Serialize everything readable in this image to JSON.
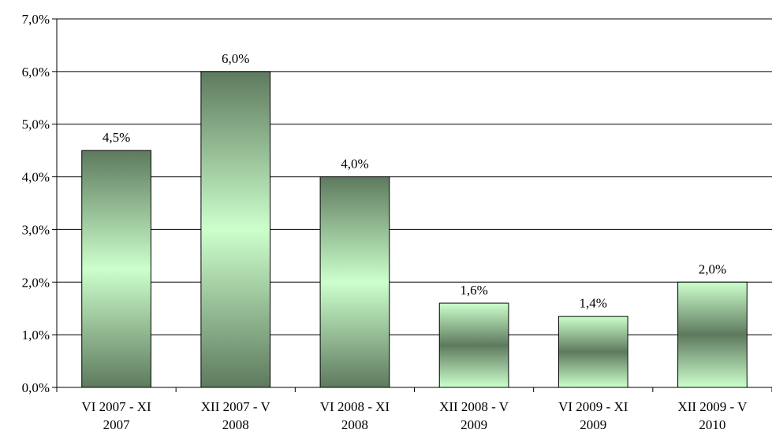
{
  "chart_data": {
    "type": "bar",
    "title": "",
    "xlabel": "",
    "ylabel": "",
    "categories": [
      [
        "VI 2007 - XI",
        "2007"
      ],
      [
        "XII 2007 - V",
        "2008"
      ],
      [
        "VI 2008 - XI",
        "2008"
      ],
      [
        "XII 2008 - V",
        "2009"
      ],
      [
        "VI 2009 - XI",
        "2009"
      ],
      [
        "XII 2009 - V",
        "2010"
      ]
    ],
    "values": [
      4.5,
      6.0,
      4.0,
      1.6,
      1.35,
      2.0
    ],
    "data_labels": [
      "4,5%",
      "6,0%",
      "4,0%",
      "1,6%",
      "1,4%",
      "2,0%"
    ],
    "ylim": [
      0,
      7
    ],
    "y_ticks": [
      0,
      1,
      2,
      3,
      4,
      5,
      6,
      7
    ],
    "y_tick_labels": [
      "0,0%",
      "1,0%",
      "2,0%",
      "3,0%",
      "4,0%",
      "5,0%",
      "6,0%",
      "7,0%"
    ],
    "grid": true,
    "legend": "none",
    "colors": {
      "bar_dark_edge": "#5e7a5e",
      "bar_light_center": "#ccffcc",
      "bar_outline": "#000000",
      "gridline": "#000000",
      "axis": "#000000"
    },
    "bar_fill_style": "gradient"
  }
}
